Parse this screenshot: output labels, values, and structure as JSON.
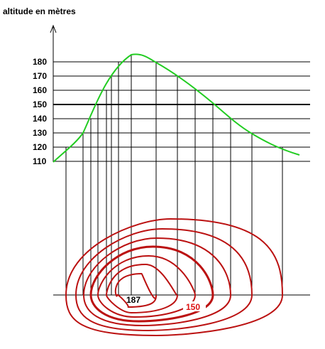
{
  "axis_label": "altitude en mètres",
  "levels": [
    "180",
    "170",
    "160",
    "150",
    "140",
    "130",
    "120",
    "110"
  ],
  "summit_label": "187",
  "contour_label": "150"
}
